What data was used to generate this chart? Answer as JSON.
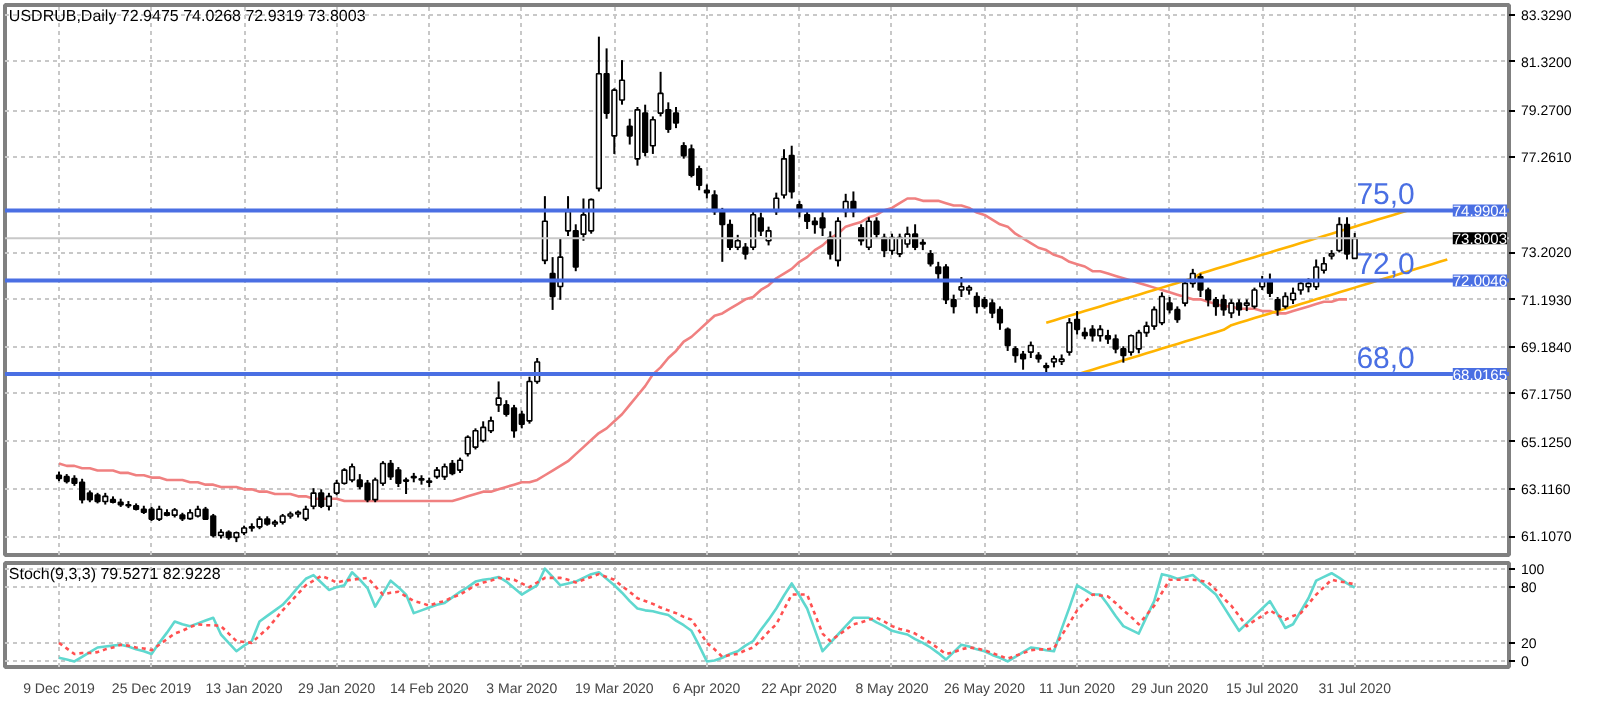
{
  "chart_data": [
    {
      "type": "candlestick",
      "title": "USDRUB,Daily 72.9475 74.0268 72.9319 73.8003",
      "categories": [
        "9 Dec 2019",
        null,
        null,
        null,
        null,
        null,
        null,
        null,
        null,
        null,
        null,
        null,
        "25 Dec 2019",
        null,
        null,
        null,
        null,
        null,
        null,
        null,
        null,
        null,
        null,
        null,
        "13 Jan 2020",
        null,
        null,
        null,
        null,
        null,
        null,
        null,
        null,
        null,
        null,
        null,
        "29 Jan 2020",
        null,
        null,
        null,
        null,
        null,
        null,
        null,
        null,
        null,
        null,
        null,
        "14 Feb 2020",
        null,
        null,
        null,
        null,
        null,
        null,
        null,
        null,
        null,
        null,
        null,
        "3 Mar 2020",
        null,
        null,
        null,
        null,
        null,
        null,
        null,
        null,
        null,
        null,
        null,
        "19 Mar 2020",
        null,
        null,
        null,
        null,
        null,
        null,
        null,
        null,
        null,
        null,
        null,
        "6 Apr 2020",
        null,
        null,
        null,
        null,
        null,
        null,
        null,
        null,
        null,
        null,
        null,
        "22 Apr 2020",
        null,
        null,
        null,
        null,
        null,
        null,
        null,
        null,
        null,
        null,
        null,
        "8 May 2020",
        null,
        null,
        null,
        null,
        null,
        null,
        null,
        null,
        null,
        null,
        null,
        "26 May 2020",
        null,
        null,
        null,
        null,
        null,
        null,
        null,
        null,
        null,
        null,
        null,
        "11 Jun 2020",
        null,
        null,
        null,
        null,
        null,
        null,
        null,
        null,
        null,
        null,
        null,
        "29 Jun 2020",
        null,
        null,
        null,
        null,
        null,
        null,
        null,
        null,
        null,
        null,
        null,
        "15 Jul 2020",
        null,
        null,
        null,
        null,
        null,
        null,
        null,
        null,
        null,
        null,
        null,
        "31 Jul 2020",
        null,
        null,
        null,
        null,
        null,
        null,
        null,
        null,
        null,
        null,
        null,
        null
      ],
      "ohlc": [
        [
          63.7,
          63.85,
          63.45,
          63.56
        ],
        [
          63.64,
          63.75,
          63.35,
          63.44
        ],
        [
          63.56,
          63.7,
          63.25,
          63.36
        ],
        [
          63.4,
          63.55,
          62.5,
          62.66
        ],
        [
          62.94,
          63.05,
          62.55,
          62.66
        ],
        [
          62.86,
          62.95,
          62.5,
          62.58
        ],
        [
          62.58,
          62.95,
          62.45,
          62.8
        ],
        [
          62.66,
          62.8,
          62.5,
          62.55
        ],
        [
          62.55,
          62.7,
          62.35,
          62.44
        ],
        [
          62.44,
          62.6,
          62.3,
          62.4
        ],
        [
          62.4,
          62.5,
          62.2,
          62.25
        ],
        [
          62.25,
          62.4,
          62.05,
          62.12
        ],
        [
          62.25,
          62.35,
          61.75,
          61.83
        ],
        [
          61.83,
          62.4,
          61.75,
          62.25
        ],
        [
          62.1,
          62.25,
          61.95,
          62.0
        ],
        [
          62.0,
          62.3,
          61.9,
          62.22
        ],
        [
          62.0,
          62.1,
          61.75,
          61.85
        ],
        [
          61.85,
          62.25,
          61.8,
          62.1
        ],
        [
          61.96,
          62.4,
          61.9,
          62.25
        ],
        [
          62.25,
          62.35,
          61.8,
          61.83
        ],
        [
          61.96,
          62.05,
          61.05,
          61.13
        ],
        [
          61.13,
          61.4,
          61.0,
          61.27
        ],
        [
          61.27,
          61.35,
          60.95,
          61.05
        ],
        [
          61.05,
          61.3,
          60.85,
          61.25
        ],
        [
          61.25,
          61.55,
          61.15,
          61.45
        ],
        [
          61.45,
          61.65,
          61.3,
          61.5
        ],
        [
          61.5,
          61.95,
          61.4,
          61.83
        ],
        [
          61.83,
          61.95,
          61.55,
          61.62
        ],
        [
          61.62,
          61.8,
          61.5,
          61.7
        ],
        [
          61.7,
          62.05,
          61.6,
          61.96
        ],
        [
          61.96,
          62.15,
          61.85,
          62.05
        ],
        [
          62.05,
          62.2,
          61.9,
          62.12
        ],
        [
          61.85,
          62.4,
          61.75,
          62.25
        ],
        [
          62.38,
          63.15,
          62.25,
          62.94
        ],
        [
          62.94,
          63.1,
          62.3,
          62.38
        ],
        [
          62.38,
          62.95,
          62.2,
          62.8
        ],
        [
          62.94,
          63.5,
          62.85,
          63.36
        ],
        [
          63.36,
          64.0,
          63.3,
          63.92
        ],
        [
          63.5,
          64.2,
          63.4,
          64.06
        ],
        [
          63.5,
          63.75,
          63.1,
          63.22
        ],
        [
          63.36,
          63.5,
          62.55,
          62.66
        ],
        [
          62.66,
          63.6,
          62.55,
          63.5
        ],
        [
          63.36,
          64.3,
          63.25,
          64.2
        ],
        [
          64.2,
          64.35,
          63.5,
          63.64
        ],
        [
          63.92,
          64.05,
          63.2,
          63.36
        ],
        [
          63.5,
          63.6,
          62.9,
          63.45
        ],
        [
          63.6,
          63.8,
          63.4,
          63.65
        ],
        [
          63.55,
          63.7,
          63.3,
          63.5
        ],
        [
          63.45,
          63.6,
          63.2,
          63.4
        ],
        [
          63.64,
          64.05,
          63.55,
          63.92
        ],
        [
          63.64,
          64.2,
          63.5,
          64.06
        ],
        [
          64.2,
          64.35,
          63.7,
          63.78
        ],
        [
          63.92,
          64.45,
          63.8,
          64.34
        ],
        [
          64.62,
          65.4,
          64.5,
          65.32
        ],
        [
          64.9,
          65.7,
          64.8,
          65.6
        ],
        [
          65.18,
          66.0,
          65.1,
          65.74
        ],
        [
          65.6,
          66.2,
          65.5,
          66.02
        ],
        [
          66.7,
          67.7,
          66.4,
          66.99
        ],
        [
          66.7,
          66.9,
          66.2,
          66.3
        ],
        [
          66.57,
          66.7,
          65.3,
          65.6
        ],
        [
          66.3,
          66.45,
          65.7,
          65.88
        ],
        [
          66.02,
          67.9,
          65.9,
          67.7
        ],
        [
          67.7,
          68.7,
          67.6,
          68.53
        ],
        [
          72.86,
          75.6,
          72.7,
          74.53
        ],
        [
          72.3,
          73.0,
          70.75,
          71.32
        ],
        [
          71.75,
          73.8,
          71.18,
          73.0
        ],
        [
          74.12,
          75.6,
          73.9,
          74.95
        ],
        [
          74.12,
          74.4,
          72.4,
          72.58
        ],
        [
          73.98,
          75.5,
          73.7,
          74.8
        ],
        [
          74.12,
          75.5,
          74.0,
          75.45
        ],
        [
          75.93,
          82.4,
          75.8,
          80.82
        ],
        [
          80.82,
          81.9,
          78.9,
          79.14
        ],
        [
          78.17,
          80.2,
          77.4,
          80.12
        ],
        [
          79.7,
          81.4,
          79.5,
          80.54
        ],
        [
          78.58,
          78.9,
          77.8,
          78.17
        ],
        [
          77.19,
          79.4,
          76.9,
          79.28
        ],
        [
          79.14,
          79.5,
          77.3,
          77.47
        ],
        [
          77.75,
          79.0,
          77.4,
          78.86
        ],
        [
          79.14,
          80.9,
          79.0,
          79.98
        ],
        [
          79.28,
          79.6,
          78.3,
          78.45
        ],
        [
          79.14,
          79.4,
          78.5,
          78.72
        ],
        [
          77.75,
          77.9,
          77.2,
          77.33
        ],
        [
          77.61,
          77.8,
          76.4,
          76.49
        ],
        [
          76.77,
          76.9,
          75.85,
          76.07
        ],
        [
          75.85,
          76.1,
          75.5,
          75.75
        ],
        [
          75.65,
          75.85,
          74.8,
          74.95
        ],
        [
          74.95,
          75.1,
          72.8,
          74.39
        ],
        [
          74.39,
          74.6,
          73.3,
          73.42
        ],
        [
          73.42,
          73.95,
          73.3,
          73.7
        ],
        [
          73.42,
          73.6,
          72.9,
          73.14
        ],
        [
          73.42,
          74.95,
          73.3,
          74.81
        ],
        [
          74.67,
          74.9,
          73.9,
          74.12
        ],
        [
          73.7,
          74.3,
          73.5,
          74.12
        ],
        [
          74.95,
          75.75,
          74.8,
          75.51
        ],
        [
          75.65,
          77.6,
          75.5,
          77.19
        ],
        [
          77.33,
          77.75,
          75.5,
          75.79
        ],
        [
          75.23,
          75.4,
          74.7,
          74.95
        ],
        [
          74.81,
          75.0,
          74.2,
          74.53
        ],
        [
          74.53,
          74.7,
          74.0,
          74.39
        ],
        [
          74.67,
          74.95,
          73.9,
          74.25
        ],
        [
          73.84,
          74.1,
          72.9,
          73.14
        ],
        [
          72.86,
          74.7,
          72.6,
          74.53
        ],
        [
          74.95,
          75.7,
          74.7,
          75.37
        ],
        [
          75.37,
          75.8,
          74.7,
          74.95
        ],
        [
          74.25,
          74.4,
          73.5,
          73.7
        ],
        [
          73.42,
          74.7,
          73.3,
          74.53
        ],
        [
          74.53,
          74.7,
          73.8,
          73.98
        ],
        [
          73.84,
          74.0,
          73.0,
          73.28
        ],
        [
          73.28,
          74.0,
          73.1,
          73.84
        ],
        [
          73.14,
          74.0,
          73.0,
          73.84
        ],
        [
          73.56,
          74.3,
          73.4,
          73.98
        ],
        [
          73.98,
          74.4,
          73.3,
          73.42
        ],
        [
          73.56,
          73.8,
          73.3,
          73.62
        ],
        [
          73.14,
          73.3,
          72.6,
          72.72
        ],
        [
          72.58,
          72.8,
          72.0,
          72.3
        ],
        [
          72.58,
          72.7,
          71.0,
          71.18
        ],
        [
          71.18,
          71.4,
          70.6,
          70.9
        ],
        [
          71.6,
          72.15,
          71.3,
          71.74
        ],
        [
          71.6,
          71.8,
          71.4,
          71.7
        ],
        [
          71.32,
          71.5,
          70.6,
          70.9
        ],
        [
          71.18,
          71.3,
          70.8,
          70.9
        ],
        [
          71.04,
          71.2,
          70.4,
          70.62
        ],
        [
          70.76,
          70.9,
          69.9,
          70.2
        ],
        [
          69.92,
          70.0,
          69.0,
          69.23
        ],
        [
          69.09,
          69.2,
          68.5,
          68.81
        ],
        [
          68.86,
          69.0,
          68.2,
          68.67
        ],
        [
          68.95,
          69.4,
          68.7,
          69.23
        ],
        [
          68.81,
          68.95,
          68.5,
          68.67
        ],
        [
          68.3,
          68.5,
          68.05,
          68.37
        ],
        [
          68.53,
          68.8,
          68.3,
          68.67
        ],
        [
          68.55,
          68.85,
          68.4,
          68.65
        ],
        [
          68.95,
          70.4,
          68.8,
          70.2
        ],
        [
          70.34,
          70.7,
          69.7,
          69.92
        ],
        [
          69.78,
          70.0,
          69.5,
          69.65
        ],
        [
          69.92,
          70.1,
          69.4,
          69.65
        ],
        [
          69.65,
          70.1,
          69.4,
          69.92
        ],
        [
          69.65,
          69.9,
          69.3,
          69.51
        ],
        [
          69.51,
          69.7,
          68.9,
          69.09
        ],
        [
          69.09,
          69.2,
          68.5,
          68.81
        ],
        [
          68.95,
          69.7,
          68.8,
          69.65
        ],
        [
          69.09,
          69.9,
          68.9,
          69.78
        ],
        [
          69.78,
          70.25,
          69.6,
          70.06
        ],
        [
          70.06,
          70.9,
          69.9,
          70.76
        ],
        [
          70.2,
          71.5,
          70.1,
          71.32
        ],
        [
          71.04,
          71.3,
          70.6,
          70.76
        ],
        [
          70.76,
          70.9,
          70.2,
          70.34
        ],
        [
          71.04,
          72.0,
          70.9,
          71.88
        ],
        [
          71.88,
          72.5,
          71.7,
          72.3
        ],
        [
          72.16,
          72.3,
          71.3,
          71.6
        ],
        [
          71.6,
          71.7,
          70.9,
          71.18
        ],
        [
          71.18,
          71.3,
          70.5,
          70.9
        ],
        [
          71.18,
          71.4,
          70.5,
          70.76
        ],
        [
          70.62,
          71.2,
          70.4,
          71.04
        ],
        [
          71.04,
          71.2,
          70.5,
          70.76
        ],
        [
          70.95,
          71.2,
          70.7,
          71.04
        ],
        [
          70.9,
          71.7,
          70.8,
          71.6
        ],
        [
          71.74,
          72.2,
          71.6,
          72.02
        ],
        [
          72.02,
          72.3,
          71.3,
          71.46
        ],
        [
          71.18,
          71.3,
          70.5,
          70.76
        ],
        [
          70.9,
          71.5,
          70.8,
          71.32
        ],
        [
          71.18,
          71.7,
          71.0,
          71.46
        ],
        [
          71.6,
          72.0,
          71.4,
          71.88
        ],
        [
          71.74,
          72.1,
          71.5,
          71.88
        ],
        [
          71.74,
          72.9,
          71.6,
          72.58
        ],
        [
          72.44,
          73.0,
          72.3,
          72.72
        ],
        [
          73.05,
          73.3,
          72.9,
          73.14
        ],
        [
          73.28,
          74.7,
          73.2,
          74.39
        ],
        [
          74.39,
          74.7,
          72.9,
          73.14
        ],
        [
          72.9475,
          74.0268,
          72.9319,
          73.8003
        ],
        null,
        null,
        null,
        null,
        null,
        null,
        null,
        null,
        null,
        null,
        null,
        null
      ],
      "series": [
        {
          "type": "line",
          "color": "#f08080",
          "values": [
            64.2,
            64.1,
            64.1,
            64.0,
            64.0,
            63.9,
            63.9,
            63.9,
            63.8,
            63.8,
            63.7,
            63.7,
            63.6,
            63.6,
            63.5,
            63.5,
            63.5,
            63.4,
            63.4,
            63.3,
            63.3,
            63.2,
            63.2,
            63.2,
            63.1,
            63.1,
            63.0,
            63.0,
            62.9,
            62.9,
            62.9,
            62.8,
            62.8,
            62.7,
            62.7,
            62.7,
            62.7,
            62.6,
            62.6,
            62.6,
            62.6,
            62.6,
            62.6,
            62.6,
            62.6,
            62.6,
            62.6,
            62.6,
            62.6,
            62.6,
            62.6,
            62.6,
            62.7,
            62.8,
            62.9,
            63.0,
            63.0,
            63.1,
            63.2,
            63.3,
            63.4,
            63.4,
            63.5,
            63.7,
            63.9,
            64.1,
            64.3,
            64.6,
            64.9,
            65.2,
            65.5,
            65.7,
            66.0,
            66.3,
            66.7,
            67.1,
            67.5,
            68.0,
            68.3,
            68.7,
            69.0,
            69.4,
            69.6,
            69.9,
            70.2,
            70.5,
            70.6,
            70.8,
            71.0,
            71.2,
            71.3,
            71.6,
            71.8,
            72.1,
            72.3,
            72.5,
            72.8,
            73.0,
            73.3,
            73.5,
            73.8,
            74.0,
            74.3,
            74.4,
            74.5,
            74.7,
            74.8,
            75.0,
            75.1,
            75.3,
            75.5,
            75.5,
            75.4,
            75.4,
            75.4,
            75.3,
            75.2,
            75.2,
            75.1,
            74.9,
            74.8,
            74.6,
            74.4,
            74.3,
            74.0,
            73.8,
            73.6,
            73.4,
            73.3,
            73.1,
            73.0,
            72.8,
            72.7,
            72.6,
            72.4,
            72.4,
            72.3,
            72.2,
            72.1,
            72.0,
            71.9,
            71.8,
            71.7,
            71.6,
            71.5,
            71.4,
            71.3,
            71.2,
            71.2,
            71.1,
            71.0,
            70.9,
            70.9,
            70.8,
            70.8,
            70.8,
            70.7,
            70.7,
            70.6,
            70.6,
            70.7,
            70.8,
            70.9,
            71.0,
            71.1,
            71.1,
            71.2,
            71.2,
            null,
            null,
            null,
            null,
            null,
            null,
            null,
            null,
            null,
            null,
            null,
            null,
            null
          ]
        },
        {
          "type": "line",
          "color": "#ffb400",
          "values": [
            null,
            null,
            null,
            null,
            null,
            null,
            null,
            null,
            null,
            null,
            null,
            null,
            null,
            null,
            null,
            null,
            null,
            null,
            null,
            null,
            null,
            null,
            null,
            null,
            null,
            null,
            null,
            null,
            null,
            null,
            null,
            null,
            null,
            null,
            null,
            null,
            null,
            null,
            null,
            null,
            null,
            null,
            null,
            null,
            null,
            null,
            null,
            null,
            null,
            null,
            null,
            null,
            null,
            null,
            null,
            null,
            null,
            null,
            null,
            null,
            null,
            null,
            null,
            null,
            null,
            null,
            null,
            null,
            null,
            null,
            null,
            null,
            null,
            null,
            null,
            null,
            null,
            null,
            null,
            null,
            null,
            null,
            null,
            null,
            null,
            null,
            null,
            null,
            null,
            null,
            null,
            null,
            null,
            null,
            null,
            null,
            null,
            null,
            null,
            null,
            null,
            null,
            null,
            null,
            null,
            null,
            null,
            null,
            null,
            null,
            null,
            null,
            null,
            null,
            null,
            null,
            null,
            null,
            null,
            null,
            null,
            null,
            null,
            null,
            null,
            null,
            null,
            null,
            70.2,
            70.3,
            70.4,
            70.5,
            70.6,
            70.7,
            70.8,
            70.9,
            71.0,
            71.1,
            71.2,
            71.3,
            71.4,
            71.5,
            71.6,
            71.7,
            71.8,
            71.9,
            72.0,
            72.1,
            72.3,
            72.4,
            72.5,
            72.6,
            72.7,
            72.8,
            72.9,
            73.0,
            73.1,
            73.2,
            73.3,
            73.4,
            73.5,
            73.6,
            73.7,
            73.8,
            73.9,
            74.0,
            74.1,
            74.2,
            74.3,
            74.4,
            74.5,
            74.6,
            74.7,
            74.8,
            74.9,
            75.0,
            null,
            null,
            null,
            null,
            null
          ]
        },
        {
          "type": "line",
          "color": "#ffb400",
          "values": [
            null,
            null,
            null,
            null,
            null,
            null,
            null,
            null,
            null,
            null,
            null,
            null,
            null,
            null,
            null,
            null,
            null,
            null,
            null,
            null,
            null,
            null,
            null,
            null,
            null,
            null,
            null,
            null,
            null,
            null,
            null,
            null,
            null,
            null,
            null,
            null,
            null,
            null,
            null,
            null,
            null,
            null,
            null,
            null,
            null,
            null,
            null,
            null,
            null,
            null,
            null,
            null,
            null,
            null,
            null,
            null,
            null,
            null,
            null,
            null,
            null,
            null,
            null,
            null,
            null,
            null,
            null,
            null,
            null,
            null,
            null,
            null,
            null,
            null,
            null,
            null,
            null,
            null,
            null,
            null,
            null,
            null,
            null,
            null,
            null,
            null,
            null,
            null,
            null,
            null,
            null,
            null,
            null,
            null,
            null,
            null,
            null,
            null,
            null,
            null,
            null,
            null,
            null,
            null,
            null,
            null,
            null,
            null,
            null,
            null,
            null,
            null,
            null,
            null,
            null,
            null,
            null,
            null,
            null,
            null,
            null,
            null,
            null,
            null,
            null,
            null,
            null,
            null,
            null,
            null,
            null,
            null,
            68.0,
            68.1,
            68.2,
            68.3,
            68.4,
            68.5,
            68.6,
            68.7,
            68.8,
            68.9,
            69.0,
            69.1,
            69.2,
            69.3,
            69.4,
            69.5,
            69.6,
            69.7,
            69.8,
            69.9,
            70.1,
            70.2,
            70.3,
            70.4,
            70.5,
            70.6,
            70.7,
            70.8,
            70.9,
            71.0,
            71.1,
            71.2,
            71.3,
            71.4,
            71.5,
            71.6,
            71.7,
            71.8,
            71.9,
            72.0,
            72.1,
            72.2,
            72.3,
            72.4,
            72.5,
            72.6,
            72.7,
            72.8,
            72.9
          ]
        }
      ],
      "ylim": [
        60.3,
        83.75
      ],
      "yticks": [
        {
          "value": 83.329,
          "label": "83.3290"
        },
        {
          "value": 81.32,
          "label": "81.3200"
        },
        {
          "value": 79.27,
          "label": "79.2700"
        },
        {
          "value": 77.261,
          "label": "77.2610"
        },
        {
          "value": 73.202,
          "label": "73.2020"
        },
        {
          "value": 71.193,
          "label": "71.1930"
        },
        {
          "value": 69.184,
          "label": "69.1840"
        },
        {
          "value": 67.175,
          "label": "67.1750"
        },
        {
          "value": 65.125,
          "label": "65.1250"
        },
        {
          "value": 63.116,
          "label": "63.1160"
        },
        {
          "value": 61.107,
          "label": "61.1070"
        }
      ],
      "ref_lines": [
        {
          "axis": "y",
          "value": 74.9904,
          "label": "75,0",
          "color": "#4a6fe3"
        },
        {
          "axis": "y",
          "value": 72.0046,
          "label": "72,0",
          "color": "#4a6fe3"
        },
        {
          "axis": "y",
          "value": 68.0165,
          "label": "68,0",
          "color": "#4a6fe3"
        },
        {
          "axis": "y",
          "value": 73.8003,
          "color": "#c8c8c8"
        }
      ],
      "annotations": [
        {
          "text": "74.9904",
          "y": 74.9904
        },
        {
          "text": "73.8003",
          "y": 73.8003
        },
        {
          "text": "72.0046",
          "y": 72.0046
        },
        {
          "text": "68.0165",
          "y": 68.0165
        }
      ],
      "grid": true,
      "tick_labels": "y"
    },
    {
      "type": "line",
      "title": "Stoch(9,3,3) 79.5271 82.9228",
      "series": [
        {
          "color": "#5fd8cf",
          "line_style": "solid",
          "values": [
            4,
            2,
            0,
            5,
            10,
            15,
            16,
            17,
            18,
            16,
            13,
            11,
            8,
            20,
            31,
            43,
            40,
            38,
            41,
            44,
            47,
            29,
            20,
            11,
            17,
            22,
            43,
            49,
            55,
            61,
            70,
            80,
            89,
            93,
            85,
            77,
            80,
            82,
            96,
            88,
            79,
            59,
            73,
            87,
            80,
            72,
            52,
            55,
            58,
            61,
            63,
            69,
            75,
            80,
            86,
            88,
            89,
            91,
            86,
            79,
            72,
            77,
            82,
            100,
            91,
            82,
            84,
            86,
            90,
            94,
            96,
            89,
            82,
            74,
            65,
            57,
            55,
            54,
            52,
            50,
            44,
            39,
            33,
            17,
            0,
            1,
            4,
            8,
            11,
            17,
            22,
            34,
            45,
            57,
            71,
            84,
            71,
            57,
            34,
            11,
            20,
            29,
            38,
            47,
            47,
            47,
            42,
            38,
            33,
            31,
            29,
            24,
            20,
            15,
            9,
            2,
            10,
            18,
            16,
            13,
            11,
            7,
            4,
            0,
            5,
            10,
            15,
            14,
            12,
            11,
            35,
            58,
            82,
            77,
            72,
            72,
            61,
            49,
            38,
            34,
            30,
            48,
            65,
            94,
            92,
            89,
            91,
            93,
            86,
            79,
            72,
            59,
            46,
            33,
            41,
            49,
            57,
            65,
            51,
            36,
            40,
            54,
            68,
            87,
            91,
            95,
            90,
            84,
            79.5271,
            null,
            null,
            null,
            null,
            null,
            null,
            null,
            null,
            null,
            null,
            null,
            null
          ]
        },
        {
          "color": "#ff5050",
          "line_style": "dotted",
          "values": [
            20,
            14,
            8,
            9,
            9,
            10,
            13,
            15,
            18,
            17,
            15,
            14,
            12,
            18,
            24,
            30,
            33,
            37,
            40,
            39,
            39,
            38,
            30,
            22,
            21,
            20,
            28,
            35,
            45,
            55,
            64,
            73,
            82,
            87,
            92,
            89,
            85,
            87,
            88,
            89,
            90,
            81,
            72,
            74,
            75,
            70,
            65,
            63,
            60,
            63,
            65,
            69,
            72,
            77,
            82,
            85,
            87,
            90,
            89,
            88,
            84,
            80,
            85,
            90,
            90,
            90,
            88,
            85,
            88,
            91,
            94,
            91,
            88,
            81,
            75,
            68,
            65,
            62,
            58,
            55,
            52,
            48,
            45,
            33,
            20,
            13,
            5,
            7,
            8,
            12,
            15,
            23,
            32,
            40,
            56,
            72,
            72,
            72,
            51,
            30,
            22,
            28,
            34,
            40,
            42,
            45,
            47,
            43,
            38,
            35,
            33,
            30,
            25,
            20,
            14,
            8,
            10,
            13,
            15,
            14,
            12,
            9,
            6,
            3,
            6,
            9,
            12,
            13,
            13,
            14,
            28,
            41,
            55,
            64,
            72,
            71,
            70,
            63,
            55,
            48,
            40,
            50,
            60,
            74,
            88,
            88,
            88,
            88,
            87,
            85,
            77,
            68,
            60,
            49,
            38,
            44,
            49,
            55,
            50,
            45,
            49,
            52,
            62,
            72,
            80,
            88,
            86,
            85,
            82.9228,
            null,
            null,
            null,
            null,
            null,
            null,
            null,
            null,
            null,
            null,
            null,
            null
          ]
        }
      ],
      "ylim": [
        -6,
        106
      ],
      "yticks": [
        0,
        20,
        80,
        100
      ],
      "grid": true
    }
  ]
}
